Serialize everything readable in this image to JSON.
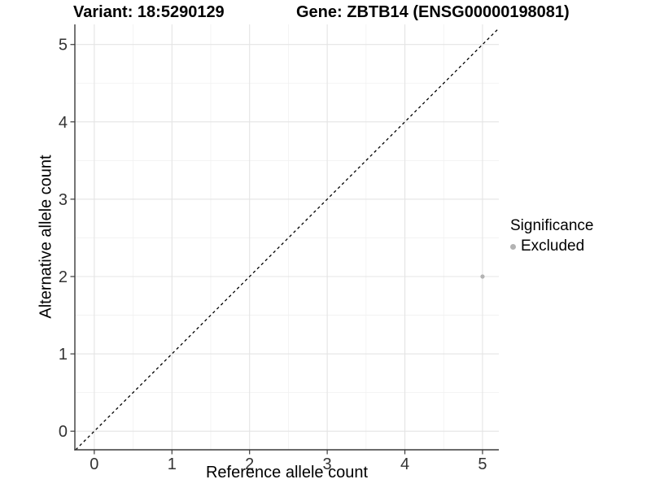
{
  "titles": {
    "variant": "Variant: 18:5290129",
    "gene": "Gene: ZBTB14 (ENSG00000198081)"
  },
  "chart_data": {
    "type": "scatter",
    "xlabel": "Reference allele count",
    "ylabel": "Alternative allele count",
    "xlim": [
      -0.25,
      5.21
    ],
    "ylim": [
      -0.24,
      5.26
    ],
    "xticks": [
      0,
      1,
      2,
      3,
      4,
      5
    ],
    "yticks": [
      0,
      1,
      2,
      3,
      4,
      5
    ],
    "x_minor_breaks": [
      0.5,
      1.5,
      2.5,
      3.5,
      4.5
    ],
    "y_minor_breaks": [
      0.5,
      1.5,
      2.5,
      3.5,
      4.5
    ],
    "grid": "major+minor",
    "identity_line": {
      "show": true,
      "style": "dashed",
      "color": "#000000"
    },
    "series": [
      {
        "name": "Excluded",
        "color": "#b3b3b3",
        "points": [
          {
            "x": 5,
            "y": 2
          }
        ]
      }
    ],
    "legend": {
      "title": "Significance",
      "position": "right",
      "entries": [
        {
          "label": "Excluded",
          "color": "#b3b3b3"
        }
      ]
    }
  },
  "colors": {
    "background": "#ffffff",
    "grid_major": "#e4e4e4",
    "grid_minor": "#f1f1f1",
    "axis_line": "#3a3a3a",
    "tick_label": "#333333",
    "title_text": "#000000"
  }
}
